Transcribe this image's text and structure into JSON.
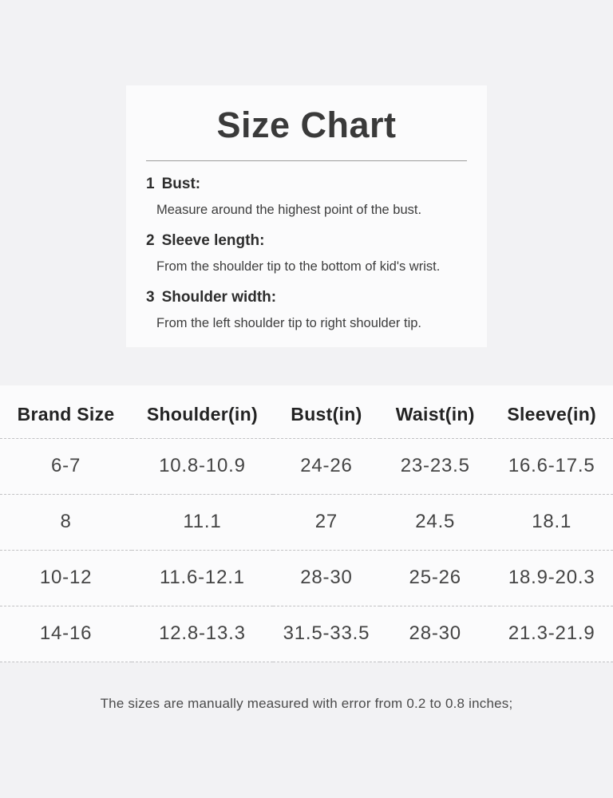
{
  "colors": {
    "page_bg": "#f2f2f4",
    "panel_bg": "#fbfbfc",
    "title_text": "#3a3a3a",
    "heading_text": "#2d2d2d",
    "table_header_text": "#232323",
    "table_cell_text": "#444444",
    "divider": "#9b9b9b",
    "dashed_line": "#c2c2c4",
    "note_text": "#4b4b4b"
  },
  "size_guide": {
    "title": "Size Chart",
    "items": [
      {
        "number": "1",
        "label": "Bust:",
        "description": "Measure around the highest point of the bust."
      },
      {
        "number": "2",
        "label": "Sleeve length:",
        "description": "From the shoulder tip to the bottom of kid's wrist."
      },
      {
        "number": "3",
        "label": "Shoulder width:",
        "description": "From the left shoulder tip to right shoulder tip."
      }
    ]
  },
  "size_table": {
    "columns": [
      "Brand Size",
      "Shoulder(in)",
      "Bust(in)",
      "Waist(in)",
      "Sleeve(in)"
    ],
    "rows": [
      [
        "6-7",
        "10.8-10.9",
        "24-26",
        "23-23.5",
        "16.6-17.5"
      ],
      [
        "8",
        "11.1",
        "27",
        "24.5",
        "18.1"
      ],
      [
        "10-12",
        "11.6-12.1",
        "28-30",
        "25-26",
        "18.9-20.3"
      ],
      [
        "14-16",
        "12.8-13.3",
        "31.5-33.5",
        "28-30",
        "21.3-21.9"
      ]
    ]
  },
  "footer": {
    "note": "The sizes are manually measured with error from 0.2 to 0.8 inches;"
  }
}
